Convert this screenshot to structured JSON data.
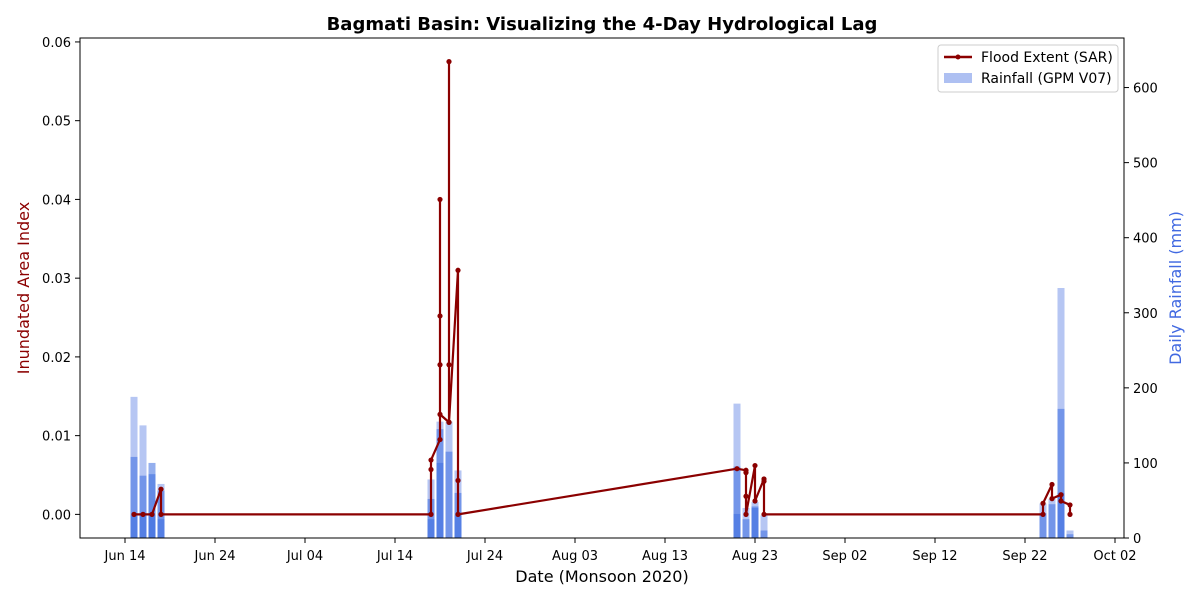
{
  "chart_data": {
    "type": "line",
    "title": "Bagmati Basin: Visualizing the 4-Day Hydrological Lag",
    "xlabel": "Date (Monsoon 2020)",
    "ylabel_left": "Inundated Area Index",
    "ylabel_right": "Daily Rainfall (mm)",
    "xlim": [
      "2020-06-09",
      "2020-10-03"
    ],
    "ylim_left": [
      -0.003,
      0.0605
    ],
    "ylim_right": [
      0,
      666
    ],
    "x_ticks": [
      "2020-06-14",
      "2020-06-24",
      "2020-07-04",
      "2020-07-14",
      "2020-07-24",
      "2020-08-03",
      "2020-08-13",
      "2020-08-23",
      "2020-09-02",
      "2020-09-12",
      "2020-09-22",
      "2020-10-02"
    ],
    "x_tick_labels": [
      "Jun 14",
      "Jun 24",
      "Jul 04",
      "Jul 14",
      "Jul 24",
      "Aug 03",
      "Aug 13",
      "Aug 23",
      "Sep 02",
      "Sep 12",
      "Sep 22",
      "Oct 02"
    ],
    "y_ticks_left": [
      0.0,
      0.01,
      0.02,
      0.03,
      0.04,
      0.05,
      0.06
    ],
    "y_tick_labels_left": [
      "0.00",
      "0.01",
      "0.02",
      "0.03",
      "0.04",
      "0.05",
      "0.06"
    ],
    "y_ticks_right": [
      0,
      100,
      200,
      300,
      400,
      500,
      600
    ],
    "y_tick_labels_right": [
      "0",
      "100",
      "200",
      "300",
      "400",
      "500",
      "600"
    ],
    "grid": false,
    "legend_position": "top-right",
    "colors": {
      "flood": "#8b0000",
      "rain_light": "#aec0f2",
      "rain_dark": "#3d6ee0",
      "left_axis_label": "#8b0000",
      "right_axis_label": "#4169e1"
    },
    "series": [
      {
        "name": "Flood Extent (SAR)",
        "kind": "line",
        "points": [
          [
            "2020-06-15",
            0.0
          ],
          [
            "2020-06-16",
            0.0
          ],
          [
            "2020-06-17",
            0.0
          ],
          [
            "2020-06-18",
            0.0032
          ],
          [
            "2020-06-18",
            0.0
          ],
          [
            "2020-07-18",
            0.0
          ],
          [
            "2020-07-18",
            0.0057
          ],
          [
            "2020-07-18",
            0.0069
          ],
          [
            "2020-07-19",
            0.0095
          ],
          [
            "2020-07-19",
            0.019
          ],
          [
            "2020-07-19",
            0.0252
          ],
          [
            "2020-07-19",
            0.04
          ],
          [
            "2020-07-19",
            0.0127
          ],
          [
            "2020-07-20",
            0.0117
          ],
          [
            "2020-07-20",
            0.0575
          ],
          [
            "2020-07-20",
            0.019
          ],
          [
            "2020-07-20",
            0.0117
          ],
          [
            "2020-07-21",
            0.031
          ],
          [
            "2020-07-21",
            0.0043
          ],
          [
            "2020-07-21",
            0.0
          ],
          [
            "2020-08-21",
            0.0058
          ],
          [
            "2020-08-22",
            0.0056
          ],
          [
            "2020-08-22",
            0.0053
          ],
          [
            "2020-08-22",
            0.0023
          ],
          [
            "2020-08-22",
            0.0
          ],
          [
            "2020-08-23",
            0.0062
          ],
          [
            "2020-08-23",
            0.0017
          ],
          [
            "2020-08-24",
            0.0045
          ],
          [
            "2020-08-24",
            0.0042
          ],
          [
            "2020-08-24",
            0.0
          ],
          [
            "2020-09-24",
            0.0
          ],
          [
            "2020-09-24",
            0.0014
          ],
          [
            "2020-09-25",
            0.0038
          ],
          [
            "2020-09-25",
            0.002
          ],
          [
            "2020-09-26",
            0.0025
          ],
          [
            "2020-09-26",
            0.0017
          ],
          [
            "2020-09-27",
            0.0012
          ],
          [
            "2020-09-27",
            0.0
          ]
        ]
      },
      {
        "name": "Rainfall (GPM V07)",
        "kind": "bar",
        "points": [
          [
            "2020-06-15",
            188,
            "light"
          ],
          [
            "2020-06-15",
            108,
            "dark"
          ],
          [
            "2020-06-15",
            30,
            "dark"
          ],
          [
            "2020-06-16",
            150,
            "light"
          ],
          [
            "2020-06-16",
            83,
            "dark"
          ],
          [
            "2020-06-16",
            31,
            "dark"
          ],
          [
            "2020-06-17",
            100,
            "dark"
          ],
          [
            "2020-06-17",
            85,
            "dark"
          ],
          [
            "2020-06-17",
            31,
            "dark"
          ],
          [
            "2020-06-18",
            72,
            "light"
          ],
          [
            "2020-06-18",
            63,
            "dark"
          ],
          [
            "2020-06-18",
            25,
            "dark"
          ],
          [
            "2020-07-18",
            78,
            "light"
          ],
          [
            "2020-07-18",
            52,
            "dark"
          ],
          [
            "2020-07-18",
            25,
            "dark"
          ],
          [
            "2020-07-19",
            155,
            "light"
          ],
          [
            "2020-07-19",
            145,
            "dark"
          ],
          [
            "2020-07-19",
            100,
            "dark"
          ],
          [
            "2020-07-20",
            155,
            "light"
          ],
          [
            "2020-07-20",
            115,
            "dark"
          ],
          [
            "2020-07-21",
            90,
            "light"
          ],
          [
            "2020-07-21",
            60,
            "dark"
          ],
          [
            "2020-07-21",
            30,
            "dark"
          ],
          [
            "2020-08-21",
            179,
            "light"
          ],
          [
            "2020-08-21",
            95,
            "dark"
          ],
          [
            "2020-08-21",
            32,
            "dark"
          ],
          [
            "2020-08-22",
            40,
            "light"
          ],
          [
            "2020-08-22",
            25,
            "dark"
          ],
          [
            "2020-08-23",
            48,
            "light"
          ],
          [
            "2020-08-23",
            42,
            "dark"
          ],
          [
            "2020-08-23",
            40,
            "dark"
          ],
          [
            "2020-08-24",
            30,
            "light"
          ],
          [
            "2020-08-24",
            10,
            "dark"
          ],
          [
            "2020-09-24",
            46,
            "light"
          ],
          [
            "2020-09-24",
            33,
            "dark"
          ],
          [
            "2020-09-25",
            52,
            "light"
          ],
          [
            "2020-09-25",
            45,
            "dark"
          ],
          [
            "2020-09-26",
            333,
            "light"
          ],
          [
            "2020-09-26",
            172,
            "dark"
          ],
          [
            "2020-09-26",
            60,
            "dark"
          ],
          [
            "2020-09-27",
            10,
            "light"
          ],
          [
            "2020-09-27",
            5,
            "dark"
          ]
        ]
      }
    ]
  }
}
